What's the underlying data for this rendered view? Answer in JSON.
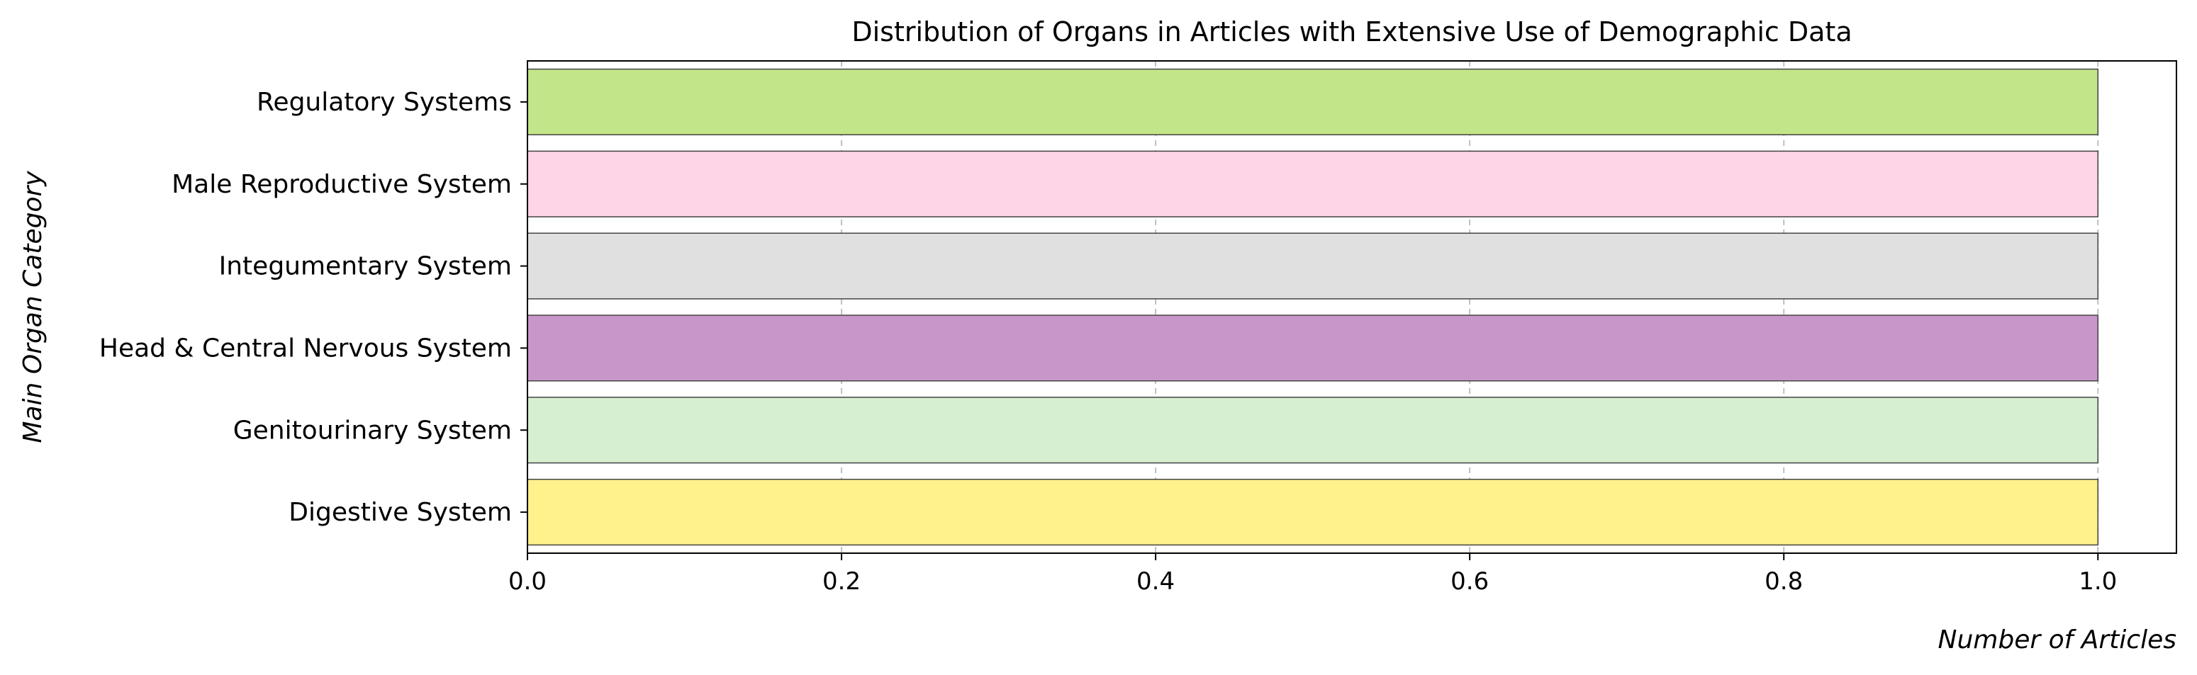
{
  "chart_data": {
    "type": "bar",
    "orientation": "horizontal",
    "title": "Distribution of Organs in Articles with Extensive Use of Demographic Data",
    "xlabel": "Number of Articles",
    "ylabel": "Main Organ Category",
    "categories": [
      "Regulatory Systems",
      "Male Reproductive System",
      "Integumentary System",
      "Head & Central Nervous System",
      "Genitourinary System",
      "Digestive System"
    ],
    "values": [
      1,
      1,
      1,
      1,
      1,
      1
    ],
    "colors": [
      "#c2e589",
      "#fdd5e6",
      "#e0e0e0",
      "#c996c9",
      "#d6efd1",
      "#fff18c"
    ],
    "xlim": [
      0,
      1.05
    ],
    "xticks": [
      0.0,
      0.2,
      0.4,
      0.6,
      0.8,
      1.0
    ],
    "xtick_labels": [
      "0.0",
      "0.2",
      "0.4",
      "0.6",
      "0.8",
      "1.0"
    ],
    "grid": "x-dashed",
    "legend": "none"
  }
}
